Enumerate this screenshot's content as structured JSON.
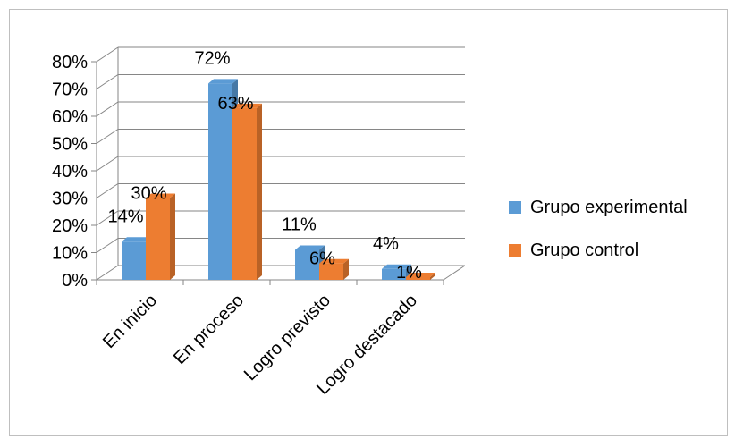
{
  "chart_data": {
    "type": "bar",
    "title": "",
    "xlabel": "",
    "ylabel": "",
    "categories": [
      "En inicio",
      "En proceso",
      "Logro previsto",
      "Logro destacado"
    ],
    "series": [
      {
        "name": "Grupo experimental",
        "values": [
          14,
          72,
          11,
          4
        ],
        "labels": [
          "14%",
          "72%",
          "11%",
          "4%"
        ],
        "color": "#5B9BD5"
      },
      {
        "name": "Grupo control",
        "values": [
          30,
          63,
          6,
          1
        ],
        "labels": [
          "30%",
          "63%",
          "6%",
          "1%"
        ],
        "color": "#ED7D31"
      }
    ],
    "ylim": [
      0,
      80
    ],
    "yticks": [
      "0%",
      "10%",
      "20%",
      "30%",
      "40%",
      "50%",
      "60%",
      "70%",
      "80%"
    ],
    "grid": true,
    "legend_position": "right",
    "style": "3d-clustered-column"
  }
}
